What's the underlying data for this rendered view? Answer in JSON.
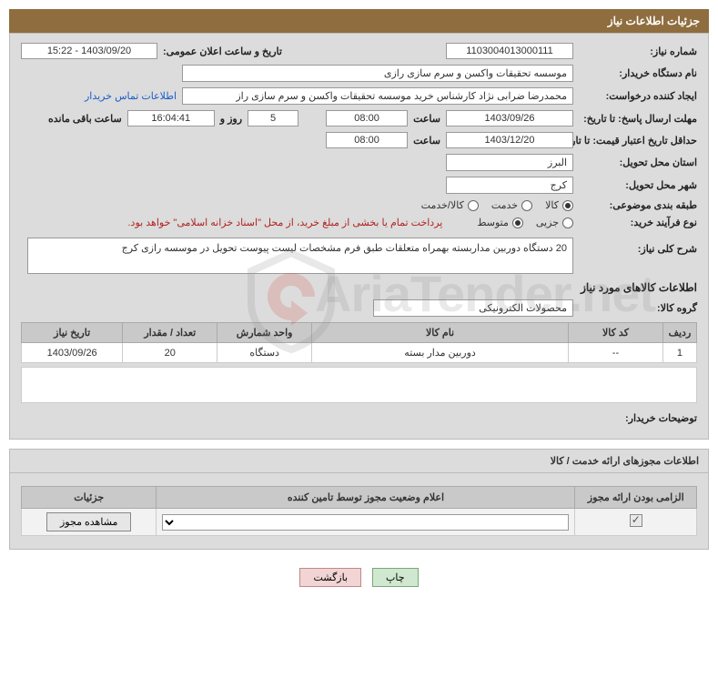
{
  "header": {
    "title": "جزئیات اطلاعات نیاز"
  },
  "form": {
    "need_number_label": "شماره نیاز:",
    "need_number": "1103004013000111",
    "announce_date_label": "تاریخ و ساعت اعلان عمومی:",
    "announce_date": "1403/09/20 - 15:22",
    "buyer_org_label": "نام دستگاه خریدار:",
    "buyer_org": "موسسه تحقیقات واکسن و سرم سازی رازی",
    "requester_label": "ایجاد کننده درخواست:",
    "requester": "محمدرضا ضرابی نژاد کارشناس خرید موسسه تحقیقات واکسن و سرم سازی راز",
    "contact_link": "اطلاعات تماس خریدار",
    "reply_deadline_label": "مهلت ارسال پاسخ: تا تاریخ:",
    "reply_date": "1403/09/26",
    "time_label": "ساعت",
    "reply_time": "08:00",
    "days_value": "5",
    "days_and": "روز و",
    "remaining_time": "16:04:41",
    "remaining_label": "ساعت باقی مانده",
    "price_validity_label": "حداقل تاریخ اعتبار قیمت: تا تاریخ:",
    "price_date": "1403/12/20",
    "price_time": "08:00",
    "delivery_province_label": "استان محل تحویل:",
    "delivery_province": "البرز",
    "delivery_city_label": "شهر محل تحویل:",
    "delivery_city": "کرج",
    "category_label": "طبقه بندی موضوعی:",
    "category_options": {
      "goods": "کالا",
      "service": "خدمت",
      "both": "کالا/خدمت"
    },
    "category_selected": "goods",
    "purchase_type_label": "نوع فرآیند خرید:",
    "purchase_options": {
      "partial": "جزیی",
      "medium": "متوسط"
    },
    "purchase_selected": "medium",
    "treasury_note": "پرداخت تمام یا بخشی از مبلغ خرید، از محل \"اسناد خزانه اسلامی\" خواهد بود.",
    "overview_label": "شرح کلی نیاز:",
    "overview_text": "20 دستگاه دوربین مداربسته بهمراه متعلقات طبق فرم مشخصات لیست پیوست تحویل در موسسه رازی کرج",
    "goods_section_title": "اطلاعات کالاهای مورد نیاز",
    "goods_group_label": "گروه کالا:",
    "goods_group": "محصولات الکترونیکی",
    "buyer_notes_label": "توضیحات خریدار:"
  },
  "goods_table": {
    "columns": [
      "ردیف",
      "کد کالا",
      "نام کالا",
      "واحد شمارش",
      "تعداد / مقدار",
      "تاریخ نیاز"
    ],
    "col_widths": [
      "5%",
      "14%",
      "38%",
      "14%",
      "14%",
      "15%"
    ],
    "rows": [
      {
        "row": "1",
        "code": "--",
        "name": "دوربین مدار بسته",
        "unit": "دستگاه",
        "qty": "20",
        "need_date": "1403/09/26"
      }
    ]
  },
  "license_section": {
    "title": "اطلاعات مجوزهای ارائه خدمت / کالا",
    "columns": [
      "الزامی بودن ارائه مجوز",
      "اعلام وضعیت مجوز توسط تامین کننده",
      "جزئیات"
    ],
    "col_widths": [
      "18%",
      "62%",
      "20%"
    ],
    "mandatory_checked": true,
    "status_options": [
      ""
    ],
    "view_button": "مشاهده مجوز"
  },
  "footer": {
    "print": "چاپ",
    "back": "بازگشت"
  },
  "watermark": {
    "text": "AriaTender.net",
    "logo_fill": "#d34b3e",
    "logo_stroke": "#8e8e8e"
  },
  "colors": {
    "header_bg": "#8f6d3e",
    "panel_bg": "#dcdcdc",
    "field_border": "#999999",
    "th_bg": "#c9c9c9",
    "link": "#1a5cc8",
    "note": "#b22222"
  }
}
